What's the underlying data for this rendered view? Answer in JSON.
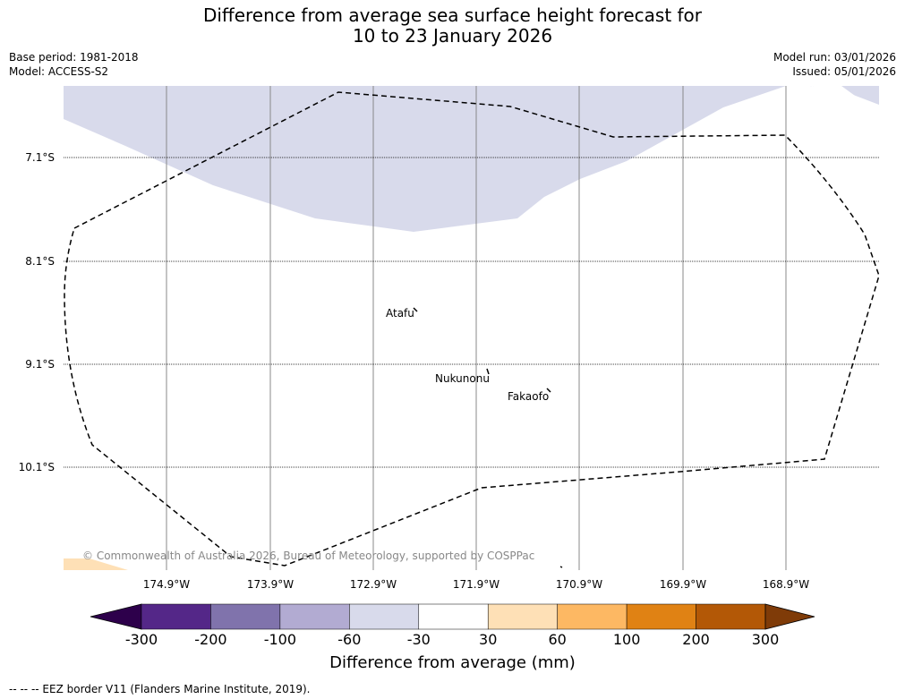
{
  "title_line1": "Difference from average sea surface height forecast for",
  "title_line2": "10 to 23 January 2026",
  "base_period": "Base period: 1981-2018",
  "model": "Model: ACCESS-S2",
  "model_run": "Model run: 03/01/2026",
  "issued": "Issued: 05/01/2026",
  "latitudes": [
    "7.1°S",
    "8.1°S",
    "9.1°S",
    "10.1°S"
  ],
  "longitudes": [
    "174.9°W",
    "173.9°W",
    "172.9°W",
    "171.9°W",
    "170.9°W",
    "169.9°W",
    "168.9°W"
  ],
  "places": [
    "Atafu",
    "Nukunonu",
    "Fakaofo"
  ],
  "copyright": "© Commonwealth of Australia 2026, Bureau of Meteorology, supported by COSPPac",
  "colorbar": {
    "ticks": [
      "-300",
      "-200",
      "-100",
      "-60",
      "-30",
      "30",
      "60",
      "100",
      "200",
      "300"
    ],
    "colors": [
      "#2d004b",
      "#542788",
      "#8073ac",
      "#b2abd2",
      "#d8daeb",
      "#ffffff",
      "#fee0b6",
      "#fdb863",
      "#e08214",
      "#b35806",
      "#7f3b08"
    ],
    "label": "Difference from average (mm)"
  },
  "footnote": "-- -- -- EEZ border V11 (Flanders Marine Institute, 2019)."
}
